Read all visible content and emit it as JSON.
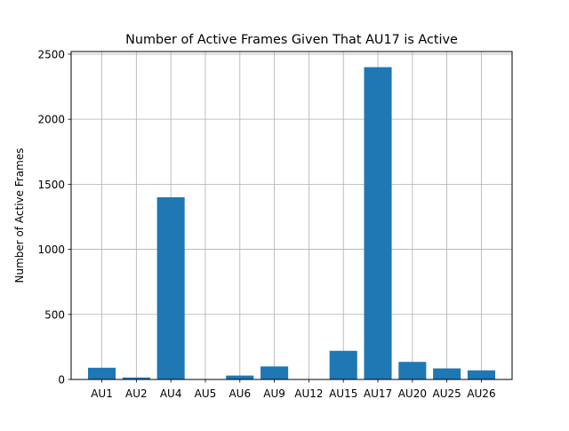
{
  "chart_data": {
    "type": "bar",
    "title": "Number of Active Frames Given That AU17 is Active",
    "xlabel": "",
    "ylabel": "Number of Active Frames",
    "categories": [
      "AU1",
      "AU2",
      "AU4",
      "AU5",
      "AU6",
      "AU9",
      "AU12",
      "AU15",
      "AU17",
      "AU20",
      "AU25",
      "AU26"
    ],
    "values": [
      90,
      15,
      1400,
      0,
      30,
      100,
      0,
      220,
      2400,
      135,
      85,
      70
    ],
    "ylim": [
      0,
      2520
    ],
    "yticks": [
      0,
      500,
      1000,
      1500,
      2000,
      2500
    ],
    "grid": true,
    "bar_color": "#1f77b4",
    "grid_color": "#b0b0b0"
  }
}
